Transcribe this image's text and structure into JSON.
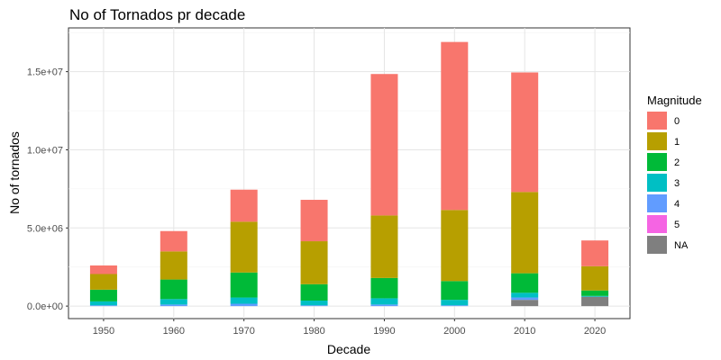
{
  "chart_data": {
    "type": "bar",
    "stacked": true,
    "title": "No of Tornados pr decade",
    "xlabel": "Decade",
    "ylabel": "No of tornados",
    "categories": [
      "1950",
      "1960",
      "1970",
      "1980",
      "1990",
      "2000",
      "2010",
      "2020"
    ],
    "ylim": [
      -800000,
      17800000
    ],
    "yticks": [
      0,
      5000000,
      10000000,
      15000000
    ],
    "ytick_labels": [
      "0.0e+00",
      "5.0e+06",
      "1.0e+07",
      "1.5e+07"
    ],
    "grid": true,
    "legend_title": "Magnitude",
    "legend_position": "right",
    "series": [
      {
        "name": "NA",
        "color": "#7f7f7f",
        "values": [
          0,
          0,
          0,
          0,
          0,
          0,
          400000,
          600000
        ]
      },
      {
        "name": "5",
        "color": "#f564e3",
        "values": [
          0,
          0,
          0,
          0,
          0,
          0,
          0,
          0
        ]
      },
      {
        "name": "4",
        "color": "#619cff",
        "values": [
          50000,
          100000,
          150000,
          50000,
          100000,
          50000,
          150000,
          0
        ]
      },
      {
        "name": "3",
        "color": "#00bfc4",
        "values": [
          250000,
          350000,
          400000,
          300000,
          400000,
          350000,
          300000,
          50000
        ]
      },
      {
        "name": "2",
        "color": "#00ba38",
        "values": [
          750000,
          1250000,
          1600000,
          1050000,
          1300000,
          1200000,
          1250000,
          350000
        ]
      },
      {
        "name": "1",
        "color": "#b79f00",
        "values": [
          1000000,
          1800000,
          3250000,
          2750000,
          4000000,
          4550000,
          5200000,
          1550000
        ]
      },
      {
        "name": "0",
        "color": "#f8766d",
        "values": [
          550000,
          1300000,
          2050000,
          2650000,
          9050000,
          10750000,
          7650000,
          1650000
        ]
      }
    ],
    "legend_order": [
      "0",
      "1",
      "2",
      "3",
      "4",
      "5",
      "NA"
    ]
  }
}
